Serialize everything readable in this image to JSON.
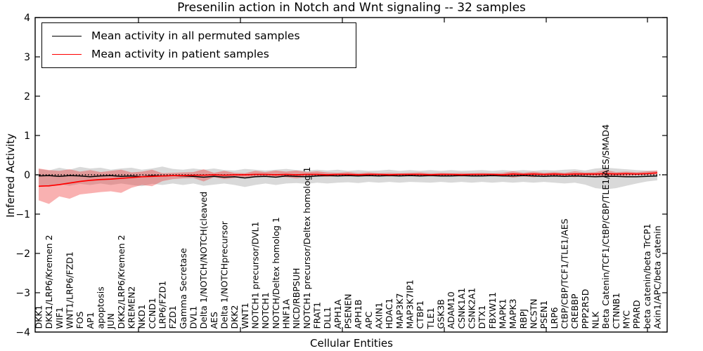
{
  "chart_data": {
    "type": "line",
    "title": "Presenilin action in Notch and Wnt signaling -- 32 samples",
    "xlabel": "Cellular Entities",
    "ylabel": "Inferred Activity",
    "ylim": [
      -4,
      4
    ],
    "ytick_labels": [
      "4",
      "3",
      "2",
      "1",
      "0",
      "−1",
      "−2",
      "−3",
      "−4"
    ],
    "grid": false,
    "legend_position": "upper left",
    "zero_baseline": {
      "value": 0,
      "style": "dotted",
      "color": "#000000"
    },
    "categories": [
      "DKK1",
      "DKK1/LRP6/Kremen 2",
      "WIF1",
      "WNT1/LRP6/FZD1",
      "FOS",
      "AP1",
      "apoptosis",
      "JUN",
      "DKK2/LRP6/Kremen 2",
      "KREMEN2",
      "NKD1",
      "CCND1",
      "LRP6/FZD1",
      "FZD1",
      "Gamma Secretase",
      "DVL1",
      "Delta 1/NOTCH/NOTCH(cleaved",
      "AES",
      "Delta 1/NOTCHprecursor",
      "DKK2",
      "WNT1",
      "NOTCH1 precursor/DVL1",
      "NOTCH1",
      "NOTCH/Deltex homolog 1",
      "HNF1A",
      "NICD/RBPSUH",
      "NOTCH1 precursor/Deltex homolog 1",
      "FRAT1",
      "DLL1",
      "APH1A",
      "PSENEN",
      "APH1B",
      "APC",
      "AXIN1",
      "HDAC1",
      "MAP3K7",
      "MAP3K7IP1",
      "CTBP1",
      "TLE1",
      "GSK3B",
      "ADAM10",
      "CSNK1A1",
      "CSNK2A1",
      "DTX1",
      "FBXW11",
      "MAPK1",
      "MAPK3",
      "RBPJ",
      "NCSTN",
      "PSEN1",
      "LRP6",
      "CtBP/CBP/TCF1/TLE1/AES",
      "CREBBP",
      "PPP2R5D",
      "NLK",
      "Beta Catenin/TCF1/CtBP/CBP/TLE1/AES/SMAD4",
      "CTNNB1",
      "MYC",
      "PPARD",
      "beta catenin/beta TrCP1",
      "Axin1/APC/beta catenin"
    ],
    "series": [
      {
        "name": "Mean activity in all permuted samples",
        "color": "#000000",
        "line_style": "solid",
        "values": [
          -0.03,
          -0.02,
          -0.04,
          -0.02,
          -0.03,
          -0.05,
          -0.03,
          -0.02,
          -0.04,
          -0.03,
          -0.05,
          -0.02,
          -0.03,
          -0.02,
          -0.03,
          -0.04,
          -0.06,
          -0.04,
          -0.06,
          -0.05,
          -0.08,
          -0.05,
          -0.04,
          -0.06,
          -0.03,
          -0.04,
          -0.05,
          -0.03,
          -0.02,
          -0.03,
          -0.02,
          -0.03,
          -0.02,
          -0.03,
          -0.02,
          -0.03,
          -0.02,
          -0.03,
          -0.02,
          -0.03,
          -0.03,
          -0.02,
          -0.03,
          -0.03,
          -0.02,
          -0.03,
          -0.03,
          -0.02,
          -0.03,
          -0.04,
          -0.03,
          -0.04,
          -0.03,
          -0.04,
          -0.05,
          -0.04,
          -0.04,
          -0.05,
          -0.05,
          -0.04,
          -0.03
        ]
      },
      {
        "name": "Mean activity in patient samples",
        "color": "#ff0000",
        "line_style": "solid",
        "values": [
          -0.29,
          -0.28,
          -0.25,
          -0.21,
          -0.17,
          -0.14,
          -0.12,
          -0.11,
          -0.09,
          -0.07,
          -0.05,
          -0.04,
          -0.03,
          -0.02,
          -0.02,
          -0.01,
          -0.01,
          0.0,
          -0.01,
          0.0,
          0.0,
          0.01,
          0.01,
          0.0,
          0.01,
          0.0,
          0.01,
          0.01,
          0.0,
          0.01,
          0.01,
          0.0,
          0.01,
          0.01,
          0.0,
          0.01,
          0.01,
          0.01,
          0.0,
          0.01,
          0.01,
          0.0,
          0.01,
          0.01,
          0.01,
          0.0,
          0.02,
          0.01,
          0.02,
          0.01,
          0.02,
          0.01,
          0.02,
          0.02,
          0.02,
          0.03,
          0.02,
          0.03,
          0.02,
          0.03,
          0.05
        ]
      }
    ],
    "bands": [
      {
        "name": "permuted samples activity range",
        "color": "#888888",
        "opacity": 0.32,
        "upper": [
          0.15,
          0.11,
          0.18,
          0.13,
          0.2,
          0.16,
          0.18,
          0.13,
          0.16,
          0.18,
          0.13,
          0.16,
          0.21,
          0.15,
          0.13,
          0.16,
          0.13,
          0.16,
          0.12,
          0.11,
          0.15,
          0.13,
          0.11,
          0.13,
          0.15,
          0.12,
          0.11,
          0.13,
          0.11,
          0.13,
          0.1,
          0.12,
          0.1,
          0.11,
          0.13,
          0.1,
          0.12,
          0.1,
          0.12,
          0.1,
          0.12,
          0.1,
          0.11,
          0.12,
          0.1,
          0.12,
          0.1,
          0.12,
          0.1,
          0.12,
          0.11,
          0.13,
          0.14,
          0.11,
          0.16,
          0.18,
          0.16,
          0.14,
          0.12,
          0.11,
          0.1
        ],
        "lower": [
          -0.26,
          -0.31,
          -0.23,
          -0.28,
          -0.23,
          -0.26,
          -0.22,
          -0.26,
          -0.22,
          -0.26,
          -0.29,
          -0.23,
          -0.26,
          -0.22,
          -0.26,
          -0.22,
          -0.28,
          -0.25,
          -0.22,
          -0.26,
          -0.31,
          -0.26,
          -0.22,
          -0.26,
          -0.22,
          -0.21,
          -0.23,
          -0.2,
          -0.22,
          -0.2,
          -0.19,
          -0.21,
          -0.18,
          -0.2,
          -0.18,
          -0.2,
          -0.18,
          -0.19,
          -0.2,
          -0.18,
          -0.2,
          -0.18,
          -0.2,
          -0.18,
          -0.2,
          -0.18,
          -0.2,
          -0.18,
          -0.2,
          -0.18,
          -0.2,
          -0.22,
          -0.2,
          -0.25,
          -0.34,
          -0.37,
          -0.34,
          -0.28,
          -0.22,
          -0.17,
          -0.14
        ]
      },
      {
        "name": "patient samples activity range",
        "color": "#ee3333",
        "opacity": 0.38,
        "upper": [
          0.16,
          0.12,
          0.1,
          0.14,
          0.08,
          0.12,
          0.07,
          0.1,
          0.13,
          0.06,
          0.08,
          0.13,
          0.04,
          0.05,
          0.06,
          0.07,
          0.14,
          0.05,
          0.1,
          0.05,
          0.04,
          0.1,
          0.07,
          0.11,
          0.08,
          0.11,
          0.07,
          0.09,
          0.06,
          0.05,
          0.07,
          0.04,
          0.06,
          0.04,
          0.05,
          0.04,
          0.05,
          0.06,
          0.04,
          0.05,
          0.04,
          0.05,
          0.04,
          0.05,
          0.04,
          0.05,
          0.09,
          0.05,
          0.08,
          0.05,
          0.07,
          0.05,
          0.09,
          0.06,
          0.07,
          0.12,
          0.07,
          0.08,
          0.07,
          0.09,
          0.11
        ],
        "lower": [
          -0.65,
          -0.74,
          -0.55,
          -0.61,
          -0.5,
          -0.47,
          -0.44,
          -0.42,
          -0.46,
          -0.33,
          -0.26,
          -0.29,
          -0.16,
          -0.11,
          -0.09,
          -0.08,
          -0.17,
          -0.06,
          -0.11,
          -0.08,
          -0.06,
          -0.05,
          -0.03,
          -0.05,
          -0.06,
          -0.09,
          -0.05,
          -0.04,
          -0.05,
          -0.03,
          -0.04,
          -0.03,
          -0.04,
          -0.03,
          -0.04,
          -0.03,
          -0.03,
          -0.04,
          -0.03,
          -0.04,
          -0.03,
          -0.04,
          -0.03,
          -0.03,
          -0.04,
          -0.03,
          -0.07,
          -0.04,
          -0.06,
          -0.03,
          -0.05,
          -0.03,
          -0.06,
          -0.02,
          -0.03,
          -0.05,
          -0.02,
          -0.03,
          -0.01,
          -0.01,
          0.0
        ]
      }
    ]
  }
}
